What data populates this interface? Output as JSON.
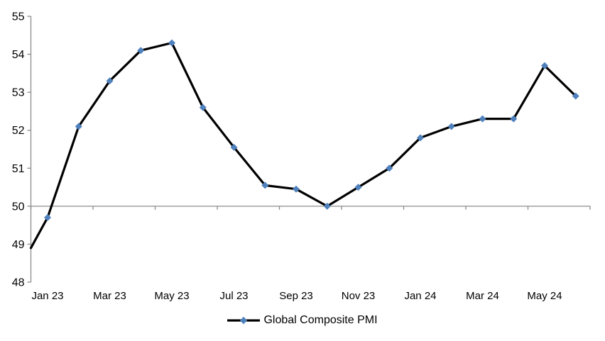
{
  "chart_data": {
    "type": "line",
    "title": "",
    "categories": [
      "Jan 23",
      "Feb 23",
      "Mar 23",
      "Apr 23",
      "May 23",
      "Jun 23",
      "Jul 23",
      "Aug 23",
      "Sep 23",
      "Oct 23",
      "Nov 23",
      "Dec 23",
      "Jan 24",
      "Feb 24",
      "Mar 24",
      "Apr 24",
      "May 24",
      "Jun 24"
    ],
    "series": [
      {
        "name": "Global Composite PMI",
        "values": [
          49.7,
          52.1,
          53.3,
          54.1,
          54.3,
          52.6,
          51.55,
          50.55,
          50.45,
          50.0,
          50.5,
          51.0,
          51.8,
          52.1,
          52.3,
          52.3,
          53.7,
          52.9
        ],
        "line_color": "#000000",
        "marker_color": "#4F81BD",
        "marker_shape": "diamond"
      }
    ],
    "edge_start_value": 48.9,
    "x_tick_labels": [
      "Jan 23",
      "Mar 23",
      "May 23",
      "Jul 23",
      "Sep 23",
      "Nov 23",
      "Jan 24",
      "Mar 24",
      "May 24"
    ],
    "y_ticks": [
      "55",
      "54",
      "53",
      "52",
      "51",
      "50",
      "49",
      "48"
    ],
    "ylim": [
      48,
      55
    ],
    "x_axis_cross_value": 50,
    "axis_color": "#8C8C8C",
    "label_color": "#000000",
    "background": "#FFFFFF",
    "gridlines": "none",
    "legend": {
      "label": "Global Composite PMI",
      "position": "bottom-center"
    }
  }
}
